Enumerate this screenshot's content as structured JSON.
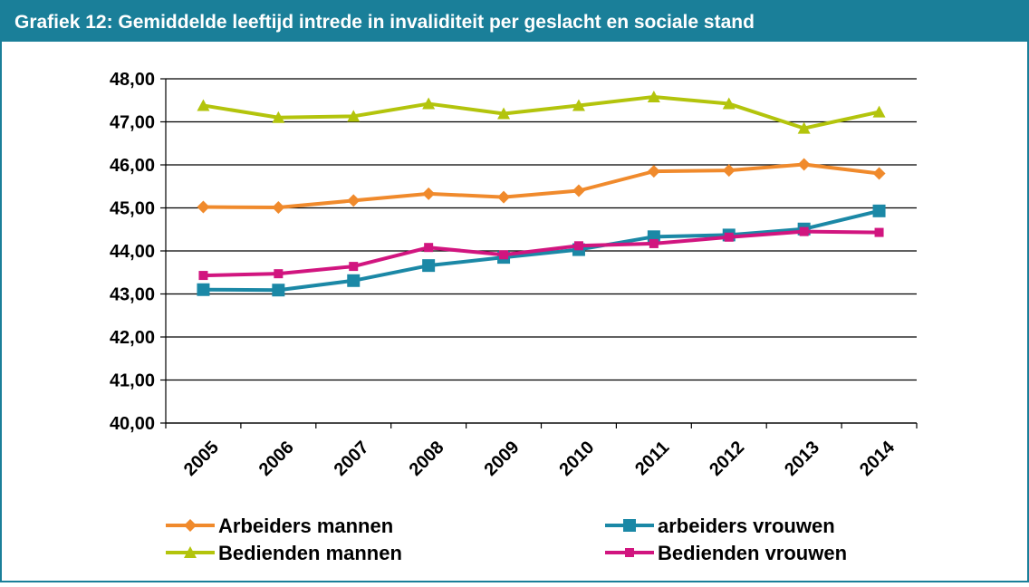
{
  "chart_data": {
    "type": "line",
    "title": "Grafiek 12: Gemiddelde leeftijd intrede in invaliditeit per geslacht en sociale stand",
    "categories": [
      "2005",
      "2006",
      "2007",
      "2008",
      "2009",
      "2010",
      "2011",
      "2012",
      "2013",
      "2014"
    ],
    "ylim": [
      40,
      48
    ],
    "yticks": [
      {
        "value": 40,
        "label": "40,00"
      },
      {
        "value": 41,
        "label": "41,00"
      },
      {
        "value": 42,
        "label": "42,00"
      },
      {
        "value": 43,
        "label": "43,00"
      },
      {
        "value": 44,
        "label": "44,00"
      },
      {
        "value": 45,
        "label": "45,00"
      },
      {
        "value": 46,
        "label": "46,00"
      },
      {
        "value": 47,
        "label": "47,00"
      },
      {
        "value": 48,
        "label": "48,00"
      }
    ],
    "grid": true,
    "legend": "bottom",
    "series": [
      {
        "name": "Arbeiders mannen",
        "color": "#f08a2c",
        "marker": "diamond",
        "values": [
          45.02,
          45.01,
          45.17,
          45.33,
          45.25,
          45.4,
          45.85,
          45.87,
          46.01,
          45.8
        ]
      },
      {
        "name": "arbeiders vrouwen",
        "color": "#1b88a6",
        "marker": "square",
        "values": [
          43.1,
          43.09,
          43.31,
          43.66,
          43.85,
          44.03,
          44.33,
          44.37,
          44.51,
          44.93
        ]
      },
      {
        "name": "Bedienden mannen",
        "color": "#b3c40c",
        "marker": "triangle",
        "values": [
          47.38,
          47.1,
          47.13,
          47.42,
          47.19,
          47.38,
          47.58,
          47.42,
          46.85,
          47.23
        ]
      },
      {
        "name": "Bedienden vrouwen",
        "color": "#d1157f",
        "marker": "smallsquare",
        "values": [
          43.43,
          43.47,
          43.64,
          44.08,
          43.91,
          44.12,
          44.17,
          44.32,
          44.45,
          44.43
        ]
      }
    ]
  }
}
